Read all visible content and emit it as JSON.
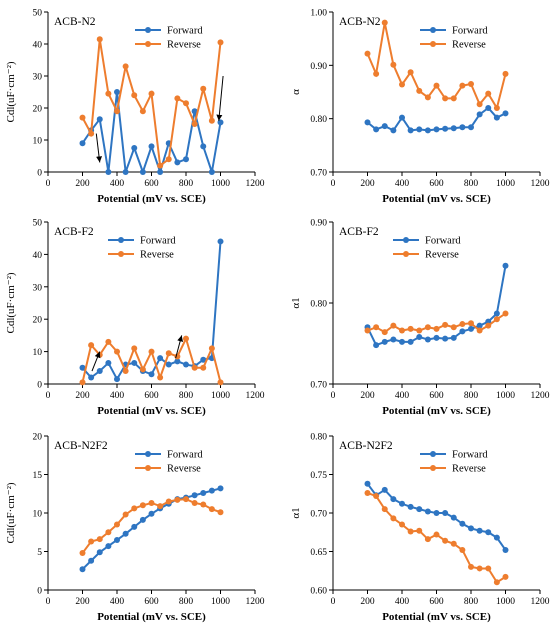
{
  "colors": {
    "forward": "#2e75c2",
    "reverse": "#ee7d2e",
    "axis": "#000000"
  },
  "chart_data": [
    {
      "type": "line",
      "title": "ACB-N2",
      "xlabel": "Potential (mV vs. SCE)",
      "ylabel": "Cdl(uF·cm⁻²)",
      "xlim": [
        0,
        1200
      ],
      "ylim": [
        0,
        50
      ],
      "xticks": [
        0,
        200,
        400,
        600,
        800,
        1000,
        1200
      ],
      "yticks": [
        0,
        10,
        20,
        30,
        40,
        50
      ],
      "ytick_labels": [
        "0",
        "10",
        "20",
        "30",
        "40",
        "50"
      ],
      "legend_position": "top-right",
      "arrows": [
        {
          "from": [
            280,
            12
          ],
          "to": [
            300,
            3
          ]
        },
        {
          "from": [
            1015,
            30
          ],
          "to": [
            990,
            16
          ]
        }
      ],
      "series": [
        {
          "name": "Forward",
          "color": "forward",
          "x": [
            200,
            250,
            300,
            350,
            400,
            450,
            500,
            550,
            600,
            650,
            700,
            750,
            800,
            850,
            900,
            950,
            1000
          ],
          "y": [
            9,
            13,
            16.5,
            0,
            25,
            0,
            7.5,
            0,
            8,
            0,
            9,
            3,
            4,
            19,
            8,
            0,
            15.5
          ]
        },
        {
          "name": "Reverse",
          "color": "reverse",
          "x": [
            200,
            250,
            300,
            350,
            400,
            450,
            500,
            550,
            600,
            650,
            700,
            750,
            800,
            850,
            900,
            950,
            1000
          ],
          "y": [
            17,
            12,
            41.5,
            24.5,
            19,
            33,
            24,
            19,
            24.5,
            2,
            4,
            23,
            21.5,
            15,
            26,
            16,
            40.5
          ]
        }
      ]
    },
    {
      "type": "line",
      "title": "ACB-N2",
      "xlabel": "Potential (mV vs. SCE)",
      "ylabel": "α",
      "xlim": [
        0,
        1200
      ],
      "ylim": [
        0.7,
        1.0
      ],
      "xticks": [
        0,
        200,
        400,
        600,
        800,
        1000,
        1200
      ],
      "yticks": [
        0.7,
        0.8,
        0.9,
        1.0
      ],
      "ytick_labels": [
        "0.70",
        "0.80",
        "0.90",
        "1.00"
      ],
      "legend_position": "top-right",
      "series": [
        {
          "name": "Forward",
          "color": "forward",
          "x": [
            200,
            250,
            300,
            350,
            400,
            450,
            500,
            550,
            600,
            650,
            700,
            750,
            800,
            850,
            900,
            950,
            1000
          ],
          "y": [
            0.793,
            0.78,
            0.786,
            0.778,
            0.802,
            0.778,
            0.78,
            0.778,
            0.78,
            0.781,
            0.782,
            0.784,
            0.784,
            0.808,
            0.82,
            0.802,
            0.81
          ]
        },
        {
          "name": "Reverse",
          "color": "reverse",
          "x": [
            200,
            250,
            300,
            350,
            400,
            450,
            500,
            550,
            600,
            650,
            700,
            750,
            800,
            850,
            900,
            950,
            1000
          ],
          "y": [
            0.922,
            0.884,
            0.98,
            0.901,
            0.864,
            0.887,
            0.852,
            0.84,
            0.862,
            0.838,
            0.838,
            0.862,
            0.865,
            0.827,
            0.847,
            0.82,
            0.884
          ]
        }
      ]
    },
    {
      "type": "line",
      "title": "ACB-F2",
      "xlabel": "Potential (mV vs. SCE)",
      "ylabel": "Cdl(uF·cm⁻²)",
      "xlim": [
        0,
        1200
      ],
      "ylim": [
        0,
        50
      ],
      "xticks": [
        0,
        200,
        400,
        600,
        800,
        1000,
        1200
      ],
      "yticks": [
        0,
        10,
        20,
        30,
        40,
        50
      ],
      "ytick_labels": [
        "0",
        "10",
        "20",
        "30",
        "40",
        "50"
      ],
      "legend_position": "top-center",
      "arrows": [
        {
          "from": [
            255,
            4
          ],
          "to": [
            300,
            10
          ]
        },
        {
          "from": [
            740,
            8
          ],
          "to": [
            775,
            15
          ]
        }
      ],
      "series": [
        {
          "name": "Forward",
          "color": "forward",
          "x": [
            200,
            250,
            300,
            350,
            400,
            450,
            500,
            550,
            600,
            650,
            700,
            750,
            800,
            850,
            900,
            950,
            1000
          ],
          "y": [
            5,
            2,
            4,
            6.5,
            1.5,
            6,
            6.5,
            4,
            3,
            8,
            6,
            7,
            6,
            5.5,
            7.5,
            8,
            44
          ]
        },
        {
          "name": "Reverse",
          "color": "reverse",
          "x": [
            200,
            250,
            300,
            350,
            400,
            450,
            500,
            550,
            600,
            650,
            700,
            750,
            800,
            850,
            900,
            950,
            1000
          ],
          "y": [
            0.5,
            12,
            9,
            13,
            10,
            4,
            11,
            4.5,
            10,
            2,
            9.5,
            8.5,
            14,
            5,
            5,
            11,
            0.5
          ]
        }
      ]
    },
    {
      "type": "line",
      "title": "ACB-F2",
      "xlabel": "Potential (mV vs. SCE)",
      "ylabel": "α1",
      "xlim": [
        0,
        1200
      ],
      "ylim": [
        0.7,
        0.9
      ],
      "xticks": [
        0,
        200,
        400,
        600,
        800,
        1000,
        1200
      ],
      "yticks": [
        0.7,
        0.8,
        0.9
      ],
      "ytick_labels": [
        "0.70",
        "0.80",
        "0.90"
      ],
      "legend_position": "top-center",
      "series": [
        {
          "name": "Forward",
          "color": "forward",
          "x": [
            200,
            250,
            300,
            350,
            400,
            450,
            500,
            550,
            600,
            650,
            700,
            750,
            800,
            850,
            900,
            950,
            1000
          ],
          "y": [
            0.77,
            0.748,
            0.752,
            0.755,
            0.752,
            0.752,
            0.758,
            0.755,
            0.757,
            0.756,
            0.757,
            0.765,
            0.768,
            0.772,
            0.777,
            0.787,
            0.846
          ]
        },
        {
          "name": "Reverse",
          "color": "reverse",
          "x": [
            200,
            250,
            300,
            350,
            400,
            450,
            500,
            550,
            600,
            650,
            700,
            750,
            800,
            850,
            900,
            950,
            1000
          ],
          "y": [
            0.766,
            0.77,
            0.764,
            0.772,
            0.766,
            0.768,
            0.766,
            0.77,
            0.768,
            0.773,
            0.77,
            0.774,
            0.775,
            0.766,
            0.772,
            0.78,
            0.787
          ]
        }
      ]
    },
    {
      "type": "line",
      "title": "ACB-N2F2",
      "xlabel": "Potential (mV vs. SCE)",
      "ylabel": "Cdl(uF·cm⁻²)",
      "xlim": [
        0,
        1200
      ],
      "ylim": [
        0,
        20
      ],
      "xticks": [
        0,
        200,
        400,
        600,
        800,
        1000,
        1200
      ],
      "yticks": [
        0,
        5,
        10,
        15,
        20
      ],
      "ytick_labels": [
        "0",
        "5",
        "10",
        "15",
        "20"
      ],
      "legend_position": "top-right",
      "series": [
        {
          "name": "Forward",
          "color": "forward",
          "x": [
            200,
            250,
            300,
            350,
            400,
            450,
            500,
            550,
            600,
            650,
            700,
            750,
            800,
            850,
            900,
            950,
            1000
          ],
          "y": [
            2.7,
            3.8,
            4.9,
            5.7,
            6.5,
            7.3,
            8.2,
            9.1,
            9.9,
            10.6,
            11.2,
            11.8,
            12.0,
            12.3,
            12.6,
            12.9,
            13.2
          ]
        },
        {
          "name": "Reverse",
          "color": "reverse",
          "x": [
            200,
            250,
            300,
            350,
            400,
            450,
            500,
            550,
            600,
            650,
            700,
            750,
            800,
            850,
            900,
            950,
            1000
          ],
          "y": [
            4.8,
            6.3,
            6.6,
            7.5,
            8.5,
            9.8,
            10.6,
            11.0,
            11.3,
            10.9,
            11.5,
            11.7,
            11.8,
            11.3,
            11.1,
            10.5,
            10.1
          ]
        }
      ]
    },
    {
      "type": "line",
      "title": "ACB-N2F2",
      "xlabel": "Potential (mV vs. SCE)",
      "ylabel": "α1",
      "xlim": [
        0,
        1200
      ],
      "ylim": [
        0.6,
        0.8
      ],
      "xticks": [
        0,
        200,
        400,
        600,
        800,
        1000,
        1200
      ],
      "yticks": [
        0.6,
        0.65,
        0.7,
        0.75,
        0.8
      ],
      "ytick_labels": [
        "0.60",
        "0.65",
        "0.70",
        "0.75",
        "0.80"
      ],
      "legend_position": "top-right",
      "series": [
        {
          "name": "Forward",
          "color": "forward",
          "x": [
            200,
            250,
            300,
            350,
            400,
            450,
            500,
            550,
            600,
            650,
            700,
            750,
            800,
            850,
            900,
            950,
            1000
          ],
          "y": [
            0.738,
            0.723,
            0.73,
            0.718,
            0.712,
            0.708,
            0.705,
            0.702,
            0.7,
            0.7,
            0.694,
            0.686,
            0.68,
            0.677,
            0.675,
            0.668,
            0.652
          ]
        },
        {
          "name": "Reverse",
          "color": "reverse",
          "x": [
            200,
            250,
            300,
            350,
            400,
            450,
            500,
            550,
            600,
            650,
            700,
            750,
            800,
            850,
            900,
            950,
            1000
          ],
          "y": [
            0.726,
            0.722,
            0.705,
            0.693,
            0.685,
            0.676,
            0.677,
            0.666,
            0.672,
            0.664,
            0.66,
            0.652,
            0.63,
            0.628,
            0.628,
            0.61,
            0.617
          ]
        }
      ]
    }
  ]
}
